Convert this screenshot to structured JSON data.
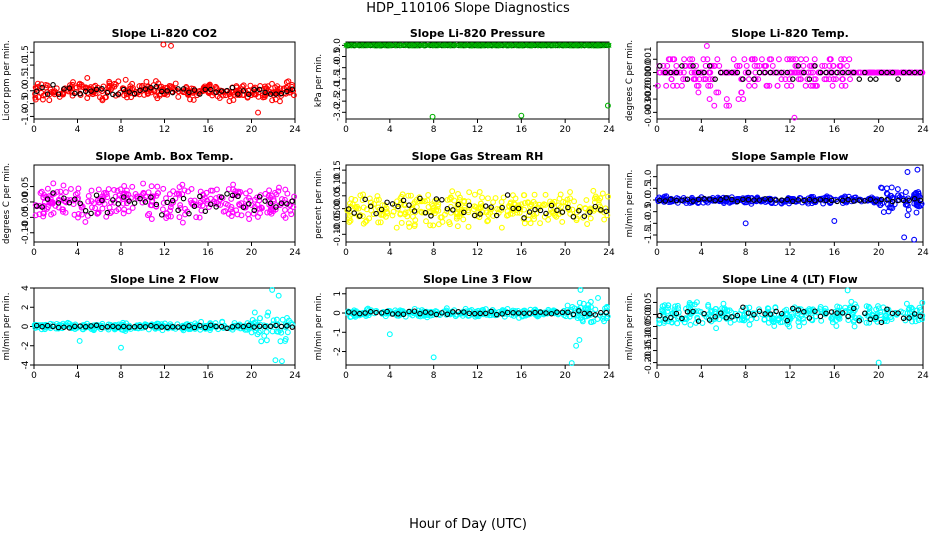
{
  "page_title": "HDP_110106  Slope Diagnostics",
  "x_axis_title": "Hour of Day (UTC)",
  "chart_data": [
    {
      "type": "scatter",
      "title": "Slope Li-820 CO2",
      "ylabel": "Licor ppm per min.",
      "color": "#ff0000",
      "xlim": [
        0,
        24
      ],
      "ylim": [
        -1.1,
        1.9
      ],
      "xticks": [
        0,
        4,
        8,
        12,
        16,
        20,
        24
      ],
      "yticks": [
        -1,
        -0.5,
        0,
        0.5,
        1,
        1.5
      ],
      "ytick_labels": [
        "-1.0",
        "-0.5",
        "0.0",
        "0.5",
        "1.0",
        "1.5"
      ],
      "spread": 0.32,
      "edge_boost": 1.0,
      "black_spread": 0.18,
      "outliers": [
        [
          11.9,
          1.8
        ],
        [
          12.6,
          1.75
        ],
        [
          20.6,
          -0.85
        ],
        [
          4.9,
          0.5
        ]
      ]
    },
    {
      "type": "scatter",
      "title": "Slope Li-820 Pressure",
      "ylabel": "kPa per min.",
      "color": "#00b000",
      "xlim": [
        0,
        24
      ],
      "ylim": [
        -3.3,
        0.15
      ],
      "xticks": [
        0,
        4,
        8,
        12,
        16,
        20,
        24
      ],
      "yticks": [
        0,
        -0.5,
        -1,
        -1.5,
        -2,
        -2.5,
        -3
      ],
      "ytick_labels": [
        "0.0",
        "-0.5",
        "-1.0",
        "-1.5",
        "-2.0",
        "-2.5",
        "-3.0"
      ],
      "spread": 0.0,
      "edge_boost": 0.0,
      "black_spread": 0.0,
      "outliers": [
        [
          7.9,
          -3.2
        ],
        [
          16.0,
          -3.15
        ],
        [
          23.9,
          -2.7
        ]
      ]
    },
    {
      "type": "scatter",
      "title": "Slope Li-820 Temp.",
      "ylabel": "degrees C per min.",
      "color": "#ff00ff",
      "xlim": [
        0,
        24
      ],
      "ylim": [
        -0.0035,
        0.0023
      ],
      "xticks": [
        0,
        4,
        8,
        12,
        16,
        20,
        24
      ],
      "yticks": [
        0.001,
        0,
        -0.001,
        -0.002,
        -0.003
      ],
      "ytick_labels": [
        "0.001",
        "0.000",
        "-0.001",
        "-0.002",
        "-0.003"
      ],
      "spread": 0.001,
      "edge_boost": 0.0,
      "black_spread": 0.0005,
      "quantized": true,
      "outliers": [
        [
          4.5,
          0.002
        ],
        [
          12.4,
          -0.0034
        ]
      ]
    },
    {
      "type": "scatter",
      "title": "Slope Amb. Box Temp.",
      "ylabel": "degrees C per min.",
      "color": "#ff00ff",
      "xlim": [
        0,
        24
      ],
      "ylim": [
        -0.13,
        0.12
      ],
      "xticks": [
        0,
        4,
        8,
        12,
        16,
        20,
        24
      ],
      "yticks": [
        -0.1,
        -0.05,
        0,
        0.05
      ],
      "ytick_labels": [
        "-0.10",
        "-0.05",
        "0.00",
        "0.05"
      ],
      "spread": 0.055,
      "edge_boost": 1.0,
      "black_spread": 0.035,
      "outliers": []
    },
    {
      "type": "scatter",
      "title": "Slope Gas Stream RH",
      "ylabel": "percent per min.",
      "color": "#ffff00",
      "xlim": [
        0,
        24
      ],
      "ylim": [
        -0.13,
        0.17
      ],
      "xticks": [
        0,
        4,
        8,
        12,
        16,
        20,
        24
      ],
      "yticks": [
        -0.1,
        -0.05,
        0,
        0.05,
        0.1,
        0.15
      ],
      "ytick_labels": [
        "-0.10",
        "-0.05",
        "0.00",
        "0.05",
        "0.10",
        "0.15"
      ],
      "spread": 0.065,
      "edge_boost": 1.0,
      "black_spread": 0.04,
      "outliers": []
    },
    {
      "type": "scatter",
      "title": "Slope Sample Flow",
      "ylabel": "ml/min per min.",
      "color": "#0000ff",
      "xlim": [
        0,
        24
      ],
      "ylim": [
        -1.8,
        1.5
      ],
      "xticks": [
        0,
        4,
        8,
        12,
        16,
        20,
        24
      ],
      "yticks": [
        -1.5,
        -1,
        -0.5,
        0,
        0.5,
        1
      ],
      "ytick_labels": [
        "-1.5",
        "-1.0",
        "-0.5",
        "0.0",
        "0.5",
        "1.0"
      ],
      "spread": 0.15,
      "edge_boost": 4.0,
      "black_spread": 0.08,
      "outliers": [
        [
          8.0,
          -1.0
        ],
        [
          16.0,
          -0.9
        ],
        [
          22.3,
          -1.6
        ],
        [
          23.2,
          -1.7
        ],
        [
          23.5,
          1.3
        ],
        [
          22.6,
          1.2
        ]
      ]
    },
    {
      "type": "scatter",
      "title": "Slope Line 2 Flow",
      "ylabel": "ml/min per min.",
      "color": "#00ffff",
      "xlim": [
        0,
        24
      ],
      "ylim": [
        -4,
        4
      ],
      "xticks": [
        0,
        4,
        8,
        12,
        16,
        20,
        24
      ],
      "yticks": [
        -4,
        -2,
        0,
        2,
        4
      ],
      "ytick_labels": [
        "-4",
        "-2",
        "0",
        "2",
        "4"
      ],
      "spread": 0.35,
      "edge_boost": 5.0,
      "black_spread": 0.15,
      "outliers": [
        [
          4.2,
          -1.5
        ],
        [
          8.0,
          -2.2
        ],
        [
          21.9,
          3.8
        ],
        [
          22.8,
          -3.6
        ],
        [
          22.2,
          -3.5
        ],
        [
          22.5,
          3.2
        ]
      ]
    },
    {
      "type": "scatter",
      "title": "Slope Line 3 Flow",
      "ylabel": "ml/min per min.",
      "color": "#00ffff",
      "xlim": [
        0,
        24
      ],
      "ylim": [
        -2.7,
        1.3
      ],
      "xticks": [
        0,
        4,
        8,
        12,
        16,
        20,
        24
      ],
      "yticks": [
        -2,
        -1,
        0,
        1
      ],
      "ytick_labels": [
        "-2",
        "-1",
        "0",
        "1"
      ],
      "spread": 0.18,
      "edge_boost": 3.0,
      "black_spread": 0.1,
      "outliers": [
        [
          4.0,
          -1.1
        ],
        [
          8.0,
          -2.3
        ],
        [
          20.6,
          -2.6
        ],
        [
          21.0,
          -1.7
        ],
        [
          21.3,
          -1.4
        ],
        [
          21.4,
          1.2
        ]
      ]
    },
    {
      "type": "scatter",
      "title": "Slope Line 4 (LT) Flow",
      "ylabel": "ml/min per min.",
      "color": "#00ffff",
      "xlim": [
        0,
        24
      ],
      "ylim": [
        -0.21,
        0.11
      ],
      "xticks": [
        0,
        4,
        8,
        12,
        16,
        20,
        24
      ],
      "yticks": [
        -0.2,
        -0.15,
        -0.1,
        -0.05,
        0,
        0.05
      ],
      "ytick_labels": [
        "-0.20",
        "-0.15",
        "-0.10",
        "-0.05",
        "0.00",
        "0.05"
      ],
      "spread": 0.045,
      "edge_boost": 1.0,
      "black_spread": 0.03,
      "outliers": [
        [
          20.0,
          -0.2
        ],
        [
          17.2,
          0.1
        ]
      ]
    }
  ]
}
